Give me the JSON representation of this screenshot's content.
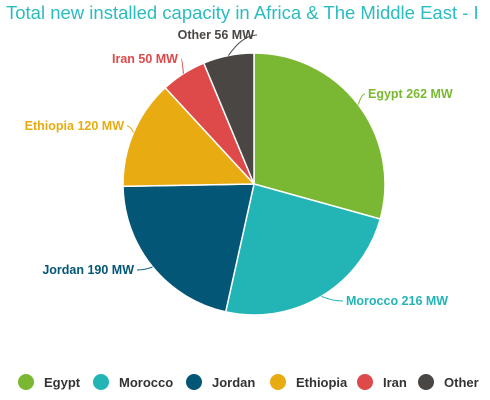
{
  "title": "Total new installed capacity in Africa & The Middle East - I",
  "chart_data": {
    "type": "pie",
    "unit": "MW",
    "slices": [
      {
        "name": "Egypt",
        "value": 262,
        "label": "Egypt 262 MW",
        "color": "#7ab833"
      },
      {
        "name": "Morocco",
        "value": 216,
        "label": "Morocco 216 MW",
        "color": "#23b5b6"
      },
      {
        "name": "Jordan",
        "value": 190,
        "label": "Jordan 190 MW",
        "color": "#045677"
      },
      {
        "name": "Ethiopia",
        "value": 120,
        "label": "Ethiopia 120 MW",
        "color": "#e8ac12"
      },
      {
        "name": "Iran",
        "value": 50,
        "label": "Iran 50 MW",
        "color": "#de4a4a"
      },
      {
        "name": "Other",
        "value": 56,
        "label": "Other 56 MW",
        "color": "#4a4644"
      }
    ],
    "legend": {
      "placement": "bottom"
    }
  }
}
